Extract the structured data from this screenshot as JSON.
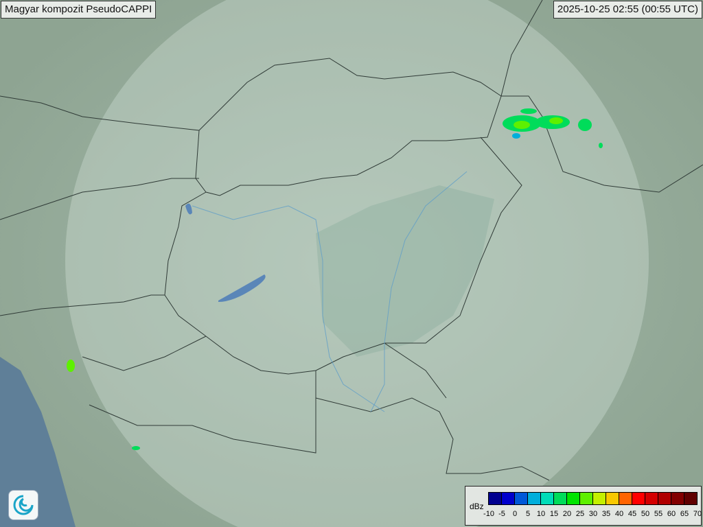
{
  "title": "Magyar kompozit  PseudoCAPPI",
  "timestamp": "2025-10-25 02:55 (00:55 UTC)",
  "legend": {
    "unit": "dBz",
    "ticks": [
      "-10",
      "-5",
      "0",
      "5",
      "10",
      "15",
      "20",
      "25",
      "30",
      "35",
      "40",
      "45",
      "50",
      "55",
      "60",
      "65",
      "70"
    ],
    "colors": [
      "#00008f",
      "#0000cc",
      "#0058d8",
      "#00aedb",
      "#00dcb8",
      "#00dc5a",
      "#00e400",
      "#5ef000",
      "#c4f000",
      "#f8c800",
      "#ff6400",
      "#ff0000",
      "#d40000",
      "#b00000",
      "#820000",
      "#600000"
    ]
  },
  "logo": {
    "icon": "met-service-swirl-icon"
  }
}
